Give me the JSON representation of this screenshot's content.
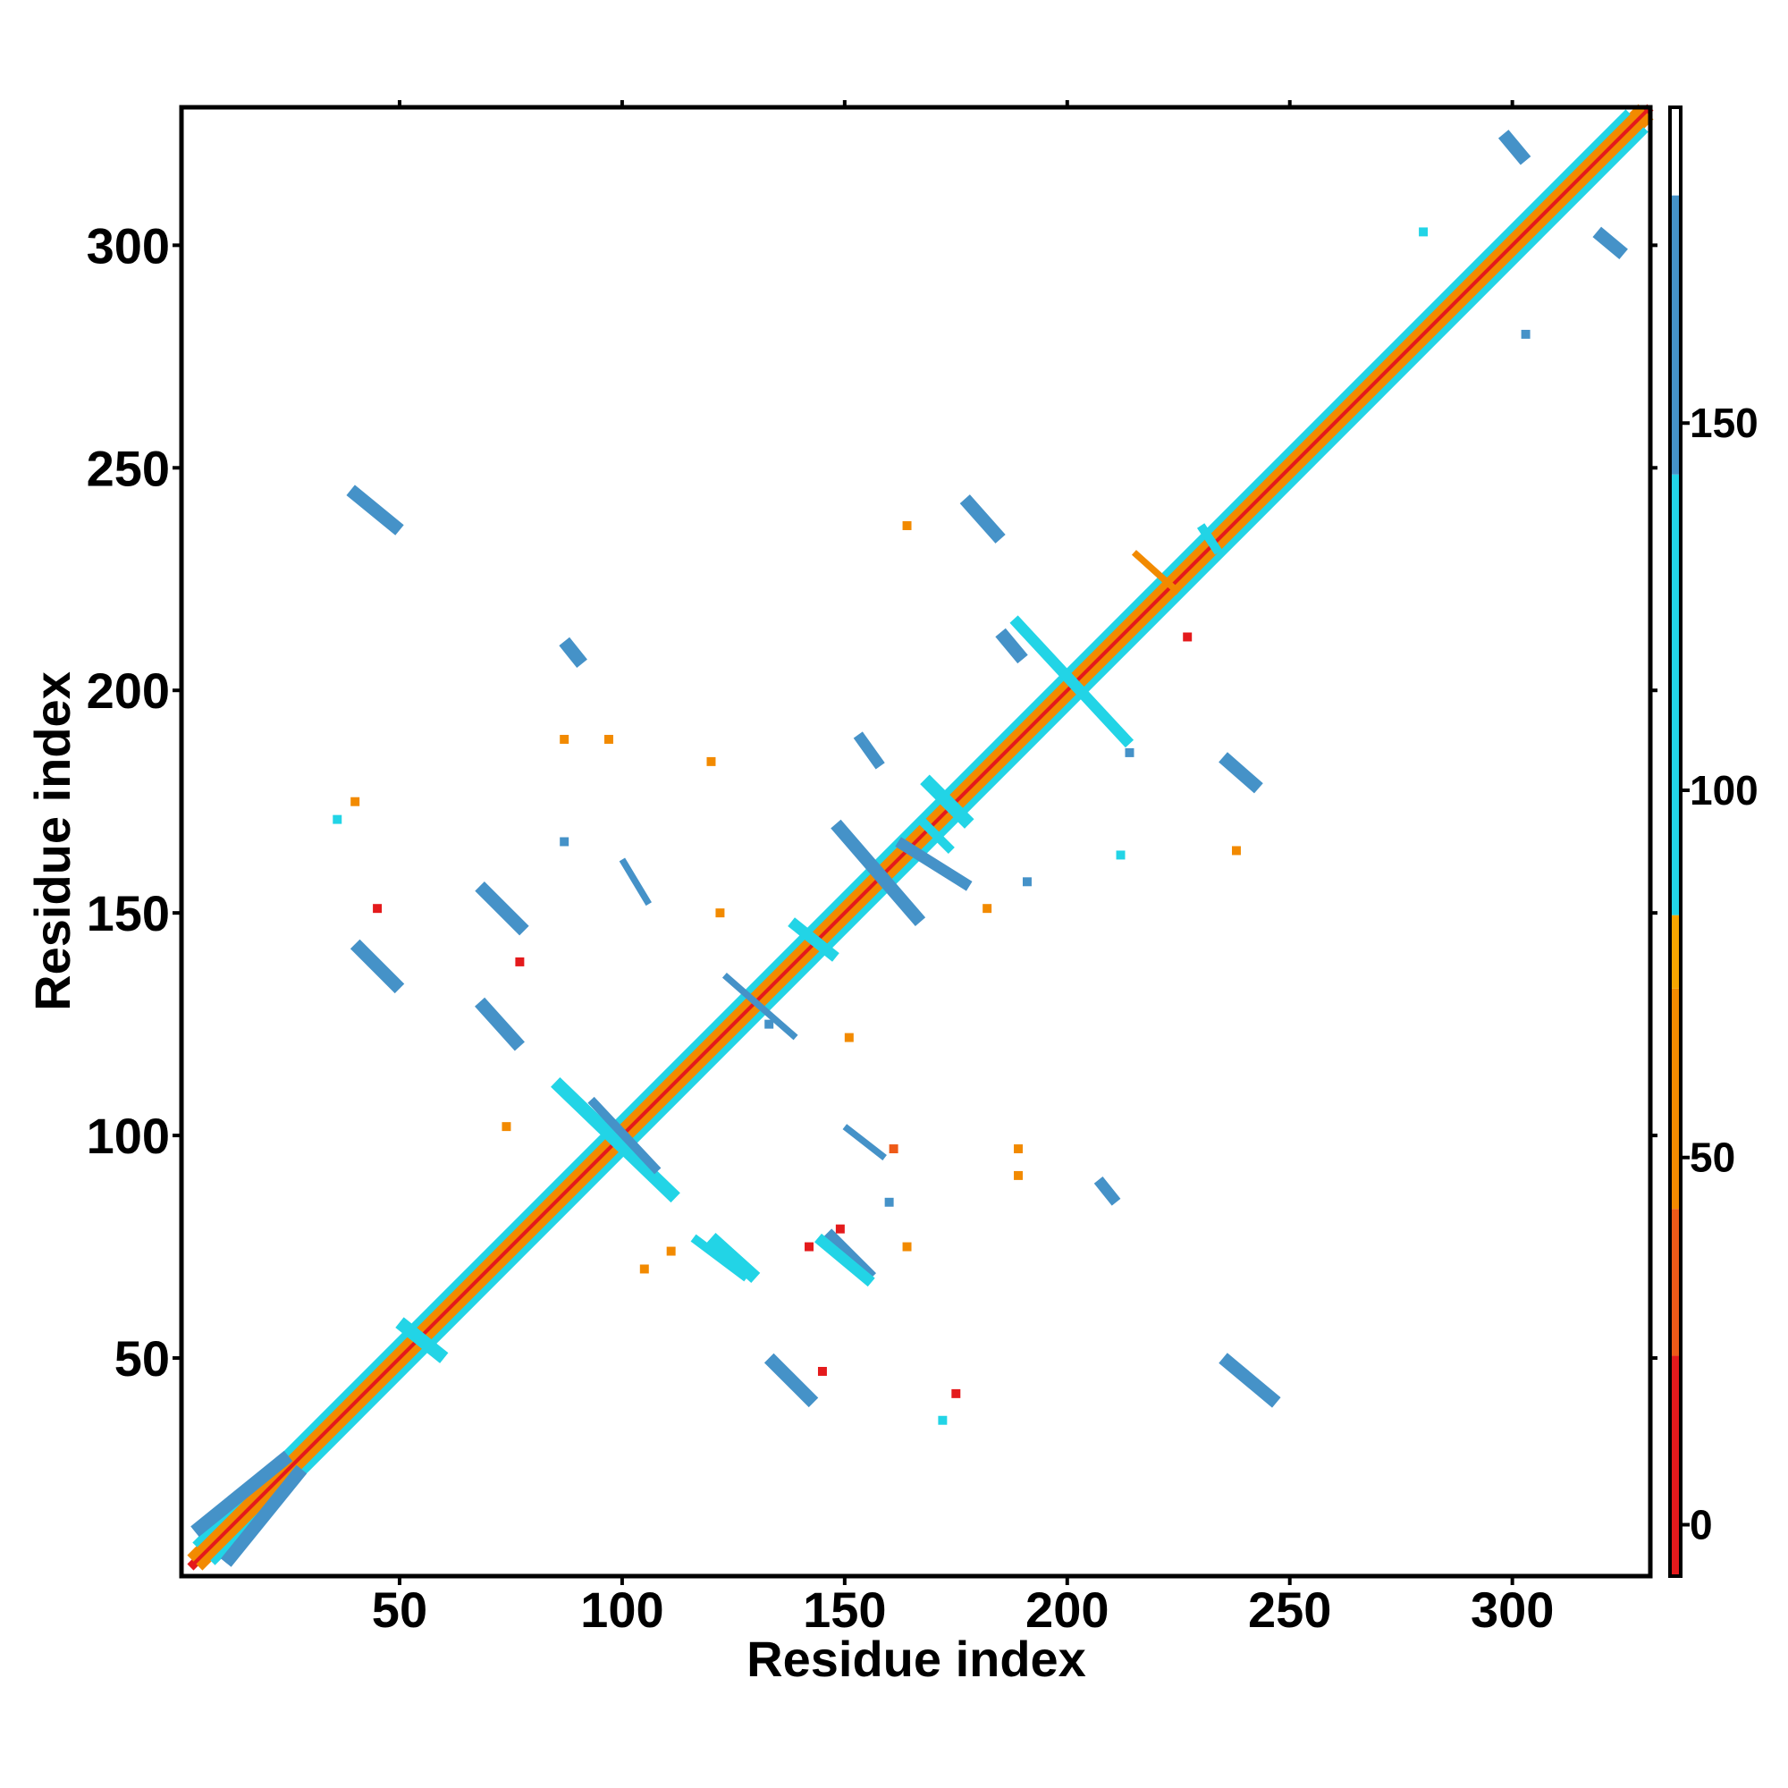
{
  "chart_data": {
    "type": "heatmap",
    "title": "",
    "xlabel": "Residue index",
    "ylabel": "Residue index",
    "xlim": [
      1,
      331
    ],
    "ylim": [
      1,
      331
    ],
    "x_ticks": [
      50,
      100,
      150,
      200,
      250,
      300
    ],
    "y_ticks": [
      50,
      100,
      150,
      200,
      250,
      300
    ],
    "colorbar": {
      "ticks": [
        0,
        50,
        100,
        150
      ],
      "range": [
        -7,
        193
      ],
      "bands": [
        {
          "from": -7,
          "to": 23,
          "color": "#e41a1c"
        },
        {
          "from": 23,
          "to": 43,
          "color": "#ee5a18"
        },
        {
          "from": 43,
          "to": 73,
          "color": "#f28a00"
        },
        {
          "from": 73,
          "to": 83,
          "color": "#f7a600"
        },
        {
          "from": 83,
          "to": 143,
          "color": "#22d4e6"
        },
        {
          "from": 143,
          "to": 181,
          "color": "#4592c8"
        },
        {
          "from": 181,
          "to": 193,
          "color": "#ffffff"
        }
      ]
    },
    "contact_segments": [
      {
        "x": [
          3,
          331
        ],
        "y": [
          3,
          331
        ],
        "value": 10,
        "width": 2
      },
      {
        "x": [
          5,
          331
        ],
        "y": [
          3,
          329
        ],
        "value": 45,
        "width": 2
      },
      {
        "x": [
          3,
          329
        ],
        "y": [
          5,
          331
        ],
        "value": 45,
        "width": 2
      },
      {
        "x": [
          8,
          330
        ],
        "y": [
          4,
          326
        ],
        "value": 110,
        "width": 1.5
      },
      {
        "x": [
          4,
          326
        ],
        "y": [
          8,
          330
        ],
        "value": 110,
        "width": 1.5
      },
      {
        "x": [
          4,
          25
        ],
        "y": [
          11,
          28
        ],
        "value": 150,
        "width": 3
      },
      {
        "x": [
          11,
          28
        ],
        "y": [
          4,
          25
        ],
        "value": 150,
        "width": 3
      },
      {
        "x": [
          39,
          50
        ],
        "y": [
          245,
          236
        ],
        "value": 150,
        "width": 3
      },
      {
        "x": [
          235,
          247
        ],
        "y": [
          50,
          40
        ],
        "value": 150,
        "width": 3
      },
      {
        "x": [
          40,
          50
        ],
        "y": [
          143,
          133
        ],
        "value": 150,
        "width": 3
      },
      {
        "x": [
          133,
          143
        ],
        "y": [
          50,
          40
        ],
        "value": 150,
        "width": 3
      },
      {
        "x": [
          68,
          78
        ],
        "y": [
          156,
          146
        ],
        "value": 150,
        "width": 3
      },
      {
        "x": [
          146,
          156
        ],
        "y": [
          78,
          68
        ],
        "value": 150,
        "width": 3
      },
      {
        "x": [
          68,
          77
        ],
        "y": [
          130,
          120
        ],
        "value": 150,
        "width": 3
      },
      {
        "x": [
          120,
          130
        ],
        "y": [
          77,
          68
        ],
        "value": 120,
        "width": 3
      },
      {
        "x": [
          177,
          185
        ],
        "y": [
          243,
          234
        ],
        "value": 150,
        "width": 3
      },
      {
        "x": [
          298,
          303
        ],
        "y": [
          325,
          319
        ],
        "value": 150,
        "width": 3
      },
      {
        "x": [
          319,
          325
        ],
        "y": [
          303,
          298
        ],
        "value": 150,
        "width": 3
      },
      {
        "x": [
          235,
          243
        ],
        "y": [
          185,
          178
        ],
        "value": 150,
        "width": 3
      },
      {
        "x": [
          185,
          190
        ],
        "y": [
          213,
          207
        ],
        "value": 150,
        "width": 3
      },
      {
        "x": [
          87,
          91
        ],
        "y": [
          211,
          206
        ],
        "value": 150,
        "width": 3
      },
      {
        "x": [
          148,
          167
        ],
        "y": [
          170,
          148
        ],
        "value": 150,
        "width": 3
      },
      {
        "x": [
          188,
          214
        ],
        "y": [
          216,
          188
        ],
        "value": 120,
        "width": 2.5
      },
      {
        "x": [
          168,
          178
        ],
        "y": [
          180,
          170
        ],
        "value": 120,
        "width": 3
      },
      {
        "x": [
          162,
          178
        ],
        "y": [
          166,
          156
        ],
        "value": 150,
        "width": 2.5
      },
      {
        "x": [
          123,
          139
        ],
        "y": [
          136,
          122
        ],
        "value": 150,
        "width": 1.5
      },
      {
        "x": [
          138,
          148
        ],
        "y": [
          148,
          140
        ],
        "value": 120,
        "width": 2.5
      },
      {
        "x": [
          85,
          112
        ],
        "y": [
          112,
          86
        ],
        "value": 120,
        "width": 3
      },
      {
        "x": [
          93,
          108
        ],
        "y": [
          108,
          92
        ],
        "value": 150,
        "width": 2
      },
      {
        "x": [
          50,
          60
        ],
        "y": [
          58,
          50
        ],
        "value": 120,
        "width": 3
      },
      {
        "x": [
          116,
          128
        ],
        "y": [
          77,
          68
        ],
        "value": 110,
        "width": 2
      },
      {
        "x": [
          144,
          156
        ],
        "y": [
          77,
          67
        ],
        "value": 120,
        "width": 2.5
      },
      {
        "x": [
          207,
          211
        ],
        "y": [
          90,
          85
        ],
        "value": 150,
        "width": 2.5
      },
      {
        "x": [
          150,
          159
        ],
        "y": [
          102,
          95
        ],
        "value": 150,
        "width": 1.5
      },
      {
        "x": [
          153,
          158
        ],
        "y": [
          190,
          183
        ],
        "value": 150,
        "width": 2.5
      },
      {
        "x": [
          100,
          106
        ],
        "y": [
          162,
          152
        ],
        "value": 150,
        "width": 1.5
      },
      {
        "x": [
          230,
          234
        ],
        "y": [
          237,
          231
        ],
        "value": 120,
        "width": 2
      },
      {
        "x": [
          167,
          174
        ],
        "y": [
          171,
          164
        ],
        "value": 120,
        "width": 2
      },
      {
        "x": [
          215,
          225
        ],
        "y": [
          231,
          222
        ],
        "value": 45,
        "width": 1.5
      }
    ],
    "contact_points": [
      {
        "x": [
          86,
          88
        ],
        "y": [
          167,
          165
        ],
        "value": 150
      },
      {
        "x": [
          39,
          41
        ],
        "y": [
          176,
          174
        ],
        "value": 55
      },
      {
        "x": [
          35,
          37
        ],
        "y": [
          172,
          170
        ],
        "value": 110
      },
      {
        "x": [
          73,
          75
        ],
        "y": [
          103,
          101
        ],
        "value": 60
      },
      {
        "x": [
          86,
          88
        ],
        "y": [
          190,
          188
        ],
        "value": 55
      },
      {
        "x": [
          96,
          98
        ],
        "y": [
          190,
          188
        ],
        "value": 55
      },
      {
        "x": [
          104,
          106
        ],
        "y": [
          71,
          69
        ],
        "value": 55
      },
      {
        "x": [
          110,
          112
        ],
        "y": [
          75,
          73
        ],
        "value": 55
      },
      {
        "x": [
          121,
          123
        ],
        "y": [
          151,
          149
        ],
        "value": 55
      },
      {
        "x": [
          150,
          152
        ],
        "y": [
          123,
          121
        ],
        "value": 55
      },
      {
        "x": [
          141,
          143
        ],
        "y": [
          76,
          74
        ],
        "value": 10
      },
      {
        "x": [
          148,
          150
        ],
        "y": [
          80,
          78
        ],
        "value": 20
      },
      {
        "x": [
          159,
          161
        ],
        "y": [
          86,
          84
        ],
        "value": 150
      },
      {
        "x": [
          163,
          165
        ],
        "y": [
          76,
          74
        ],
        "value": 55
      },
      {
        "x": [
          174,
          176
        ],
        "y": [
          43,
          41
        ],
        "value": 20
      },
      {
        "x": [
          171,
          173
        ],
        "y": [
          37,
          35
        ],
        "value": 110
      },
      {
        "x": [
          188,
          190
        ],
        "y": [
          98,
          96
        ],
        "value": 55
      },
      {
        "x": [
          188,
          190
        ],
        "y": [
          92,
          90
        ],
        "value": 55
      },
      {
        "x": [
          160,
          162
        ],
        "y": [
          98,
          96
        ],
        "value": 30
      },
      {
        "x": [
          211,
          213
        ],
        "y": [
          164,
          162
        ],
        "value": 110
      },
      {
        "x": [
          237,
          239
        ],
        "y": [
          165,
          163
        ],
        "value": 55
      },
      {
        "x": [
          213,
          215
        ],
        "y": [
          187,
          185
        ],
        "value": 150
      },
      {
        "x": [
          190,
          192
        ],
        "y": [
          158,
          156
        ],
        "value": 150
      },
      {
        "x": [
          163,
          165
        ],
        "y": [
          238,
          236
        ],
        "value": 55
      },
      {
        "x": [
          226,
          228
        ],
        "y": [
          213,
          211
        ],
        "value": 20
      },
      {
        "x": [
          279,
          281
        ],
        "y": [
          304,
          302
        ],
        "value": 110
      },
      {
        "x": [
          302,
          304
        ],
        "y": [
          281,
          279
        ],
        "value": 150
      },
      {
        "x": [
          132,
          134
        ],
        "y": [
          126,
          124
        ],
        "value": 150
      },
      {
        "x": [
          76,
          78
        ],
        "y": [
          140,
          138
        ],
        "value": 10
      },
      {
        "x": [
          44,
          46
        ],
        "y": [
          152,
          150
        ],
        "value": 10
      },
      {
        "x": [
          119,
          121
        ],
        "y": [
          185,
          183
        ],
        "value": 55
      },
      {
        "x": [
          181,
          183
        ],
        "y": [
          152,
          150
        ],
        "value": 55
      },
      {
        "x": [
          144,
          146
        ],
        "y": [
          48,
          46
        ],
        "value": 10
      }
    ]
  }
}
